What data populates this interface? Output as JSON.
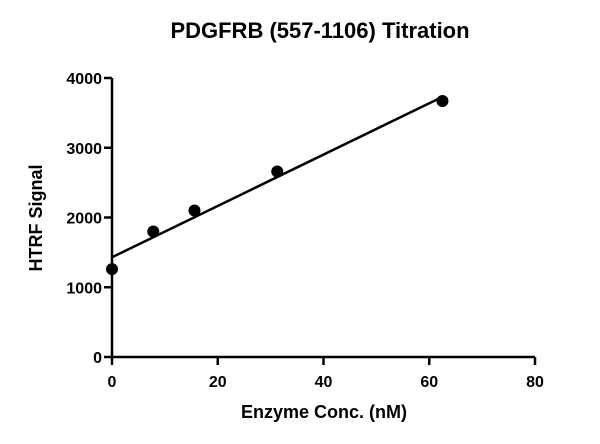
{
  "chart_data": {
    "type": "scatter",
    "title": "PDGFRB (557-1106) Titration",
    "xlabel": "Enzyme Conc. (nM)",
    "ylabel": "HTRF Signal",
    "xlim": [
      0,
      80
    ],
    "ylim": [
      0,
      4000
    ],
    "x_ticks": [
      0,
      20,
      40,
      60,
      80
    ],
    "y_ticks": [
      0,
      1000,
      2000,
      3000,
      4000
    ],
    "grid": false,
    "legend": null,
    "series": [
      {
        "name": "data",
        "marker": "filled-circle",
        "x": [
          0,
          7.8,
          15.6,
          31.25,
          62.5
        ],
        "y": [
          1260,
          1800,
          2100,
          2660,
          3670
        ]
      },
      {
        "name": "linear fit",
        "type": "line",
        "x": [
          0,
          62.5
        ],
        "y": [
          1430,
          3730
        ]
      }
    ]
  },
  "colors": {
    "ink": "#000000",
    "background": "#ffffff"
  }
}
